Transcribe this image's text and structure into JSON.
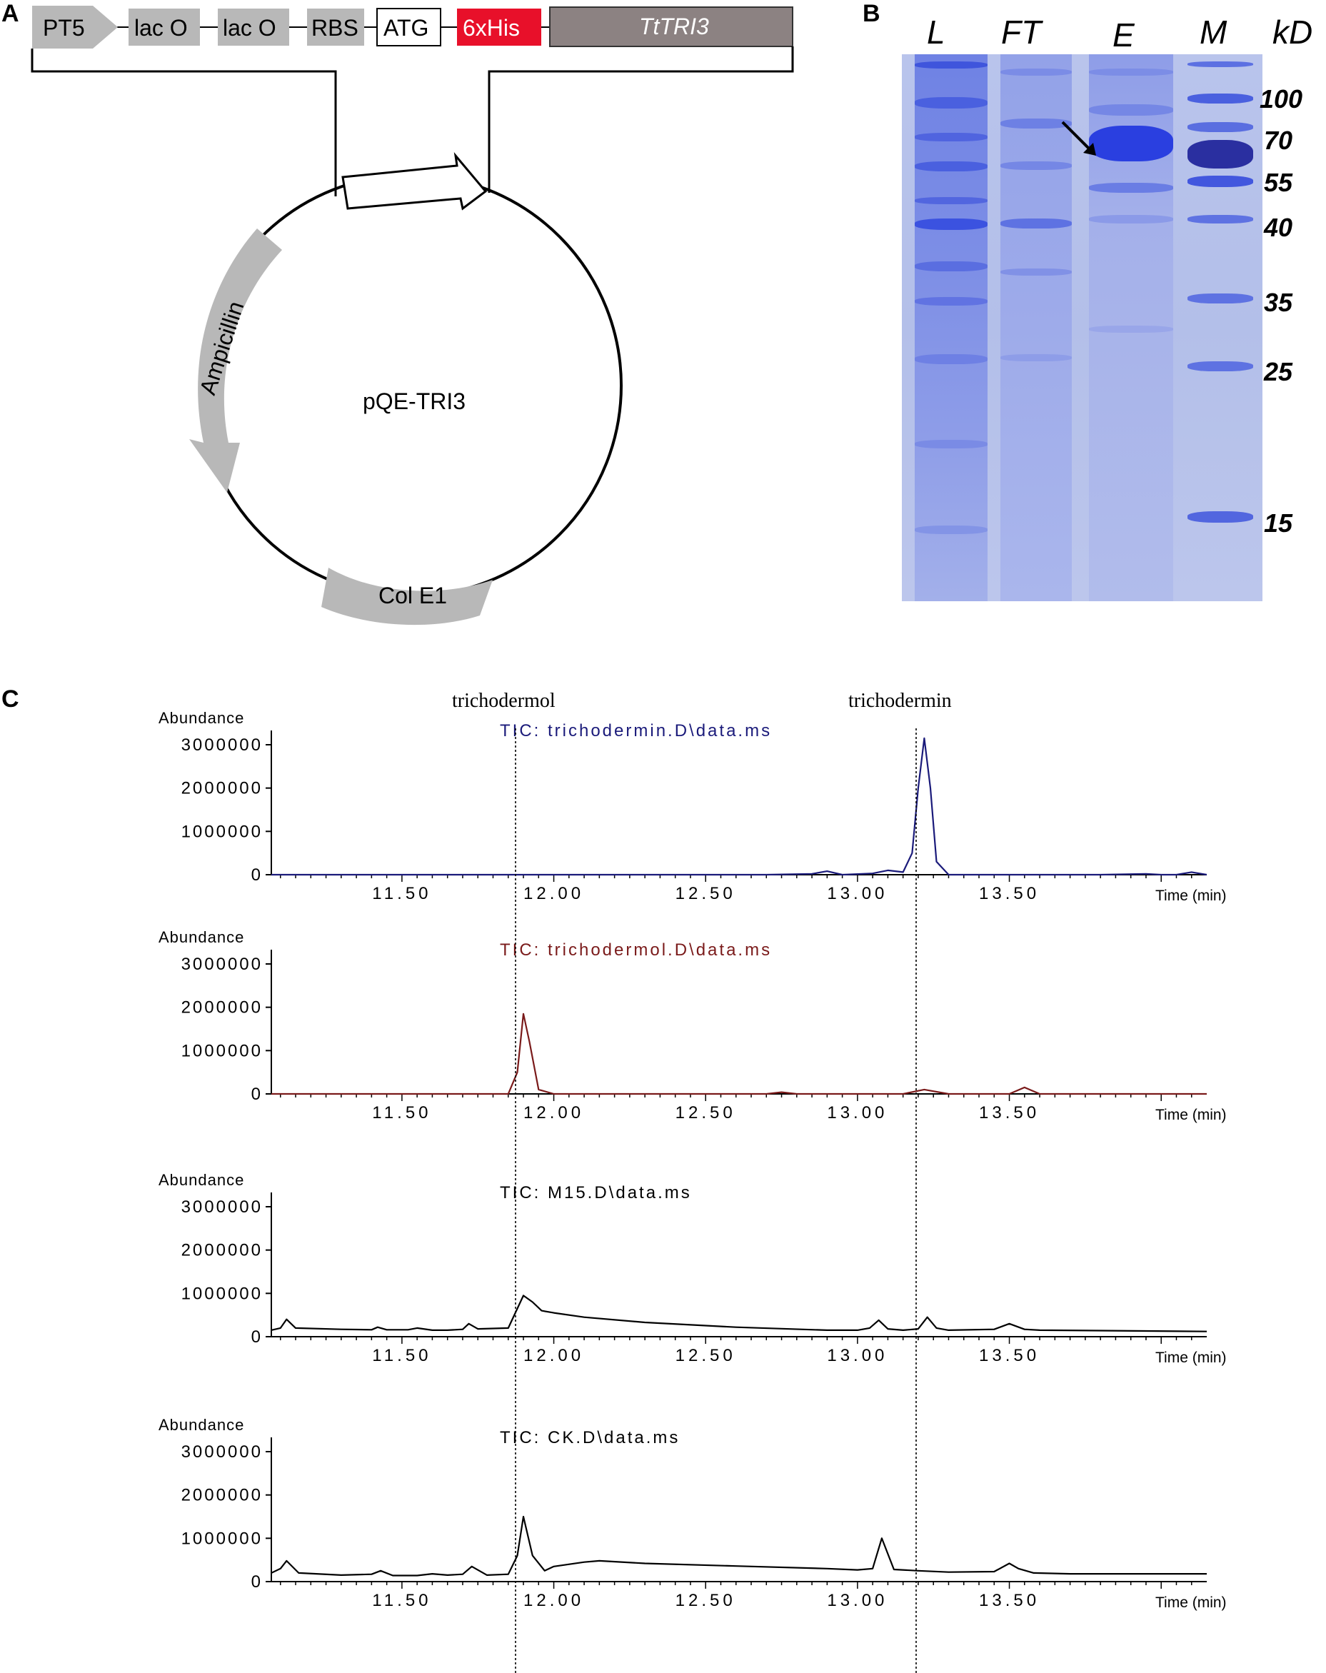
{
  "panels": {
    "a": "A",
    "b": "B",
    "c": "C"
  },
  "construct": {
    "elements": [
      "PT5",
      "lac O",
      "lac O",
      "RBS",
      "ATG",
      "6xHis",
      "TtTRI3"
    ],
    "plasmid_name": "pQE-TRI3",
    "ampicillin": "Ampicillin",
    "ori": "Col E1",
    "colors": {
      "grey": "#b8b8b8",
      "his": "#e8102a",
      "gene": "#8c8282"
    }
  },
  "gel": {
    "lanes": [
      "L",
      "FT",
      "E",
      "M"
    ],
    "unit": "kD",
    "markers": [
      "100",
      "70",
      "55",
      "40",
      "35",
      "25",
      "15"
    ],
    "colors": {
      "background": "#b7c2eb",
      "band": "#3b52e0"
    }
  },
  "chromatograms": {
    "peak_labels": [
      "trichodermol",
      "trichodermin"
    ],
    "y_label": "Abundance",
    "x_label": "Time (min)",
    "y_ticks": [
      "0",
      "1000000",
      "2000000",
      "3000000"
    ],
    "x_ticks": [
      "11.50",
      "12.00",
      "12.50",
      "13.00",
      "13.50"
    ],
    "traces": [
      {
        "title": "TIC: trichodermin.D\\data.ms",
        "color": "#1a1a7a"
      },
      {
        "title": "TIC: trichodermol.D\\data.ms",
        "color": "#7a1a1a"
      },
      {
        "title": "TIC: M15.D\\data.ms",
        "color": "#000000"
      },
      {
        "title": "TIC: CK.D\\data.ms",
        "color": "#000000"
      }
    ]
  },
  "chart_data": [
    {
      "type": "line",
      "title": "TIC: trichodermin.D\\data.ms",
      "xlabel": "Time (min)",
      "ylabel": "Abundance",
      "xlim": [
        11.07,
        14.15
      ],
      "ylim": [
        0,
        3000000
      ],
      "series": [
        {
          "x": [
            11.07,
            12.5,
            12.7,
            12.85,
            12.9,
            12.95,
            13.05,
            13.1,
            13.15,
            13.18,
            13.2,
            13.22,
            13.24,
            13.26,
            13.3,
            13.4,
            13.8,
            13.95,
            14.0,
            14.05,
            14.1,
            14.15
          ],
          "y": [
            0,
            0,
            0,
            20000,
            80000,
            0,
            30000,
            100000,
            60000,
            500000,
            2000000,
            3150000,
            2000000,
            300000,
            0,
            0,
            0,
            20000,
            0,
            0,
            60000,
            0
          ]
        }
      ]
    },
    {
      "type": "line",
      "title": "TIC: trichodermol.D\\data.ms",
      "xlabel": "Time (min)",
      "ylabel": "Abundance",
      "xlim": [
        11.07,
        14.15
      ],
      "ylim": [
        0,
        3000000
      ],
      "series": [
        {
          "x": [
            11.07,
            11.85,
            11.88,
            11.9,
            11.92,
            11.95,
            12.0,
            12.7,
            12.75,
            12.8,
            13.15,
            13.22,
            13.3,
            13.5,
            13.55,
            13.6,
            14.15
          ],
          "y": [
            0,
            0,
            500000,
            1850000,
            1200000,
            100000,
            0,
            0,
            40000,
            0,
            0,
            100000,
            0,
            0,
            150000,
            0,
            0
          ]
        }
      ]
    },
    {
      "type": "line",
      "title": "TIC: M15.D\\data.ms",
      "xlabel": "Time (min)",
      "ylabel": "Abundance",
      "xlim": [
        11.07,
        14.15
      ],
      "ylim": [
        0,
        3000000
      ],
      "series": [
        {
          "x": [
            11.07,
            11.1,
            11.12,
            11.15,
            11.3,
            11.4,
            11.42,
            11.45,
            11.52,
            11.55,
            11.6,
            11.65,
            11.7,
            11.72,
            11.75,
            11.85,
            11.9,
            11.93,
            11.96,
            12.0,
            12.1,
            12.3,
            12.6,
            12.9,
            13.0,
            13.04,
            13.07,
            13.1,
            13.15,
            13.2,
            13.23,
            13.26,
            13.3,
            13.45,
            13.5,
            13.55,
            13.6,
            13.8,
            14.15
          ],
          "y": [
            150000,
            200000,
            400000,
            200000,
            170000,
            160000,
            220000,
            160000,
            160000,
            200000,
            150000,
            150000,
            170000,
            300000,
            180000,
            200000,
            950000,
            800000,
            600000,
            550000,
            450000,
            330000,
            220000,
            150000,
            150000,
            200000,
            380000,
            180000,
            150000,
            180000,
            450000,
            200000,
            150000,
            170000,
            300000,
            170000,
            150000,
            140000,
            120000
          ]
        }
      ]
    },
    {
      "type": "line",
      "title": "TIC: CK.D\\data.ms",
      "xlabel": "Time (min)",
      "ylabel": "Abundance",
      "xlim": [
        11.07,
        14.15
      ],
      "ylim": [
        0,
        3000000
      ],
      "series": [
        {
          "x": [
            11.07,
            11.1,
            11.12,
            11.16,
            11.3,
            11.4,
            11.43,
            11.47,
            11.55,
            11.6,
            11.65,
            11.7,
            11.73,
            11.78,
            11.85,
            11.88,
            11.9,
            11.93,
            11.97,
            12.0,
            12.1,
            12.15,
            12.3,
            12.6,
            12.9,
            13.0,
            13.05,
            13.08,
            13.12,
            13.2,
            13.3,
            13.45,
            13.5,
            13.53,
            13.58,
            13.7,
            14.15
          ],
          "y": [
            200000,
            300000,
            480000,
            200000,
            150000,
            170000,
            250000,
            140000,
            140000,
            180000,
            150000,
            170000,
            350000,
            150000,
            170000,
            600000,
            1500000,
            600000,
            250000,
            350000,
            450000,
            480000,
            420000,
            360000,
            300000,
            270000,
            300000,
            1000000,
            280000,
            250000,
            220000,
            230000,
            420000,
            300000,
            200000,
            180000,
            180000
          ]
        }
      ]
    }
  ]
}
